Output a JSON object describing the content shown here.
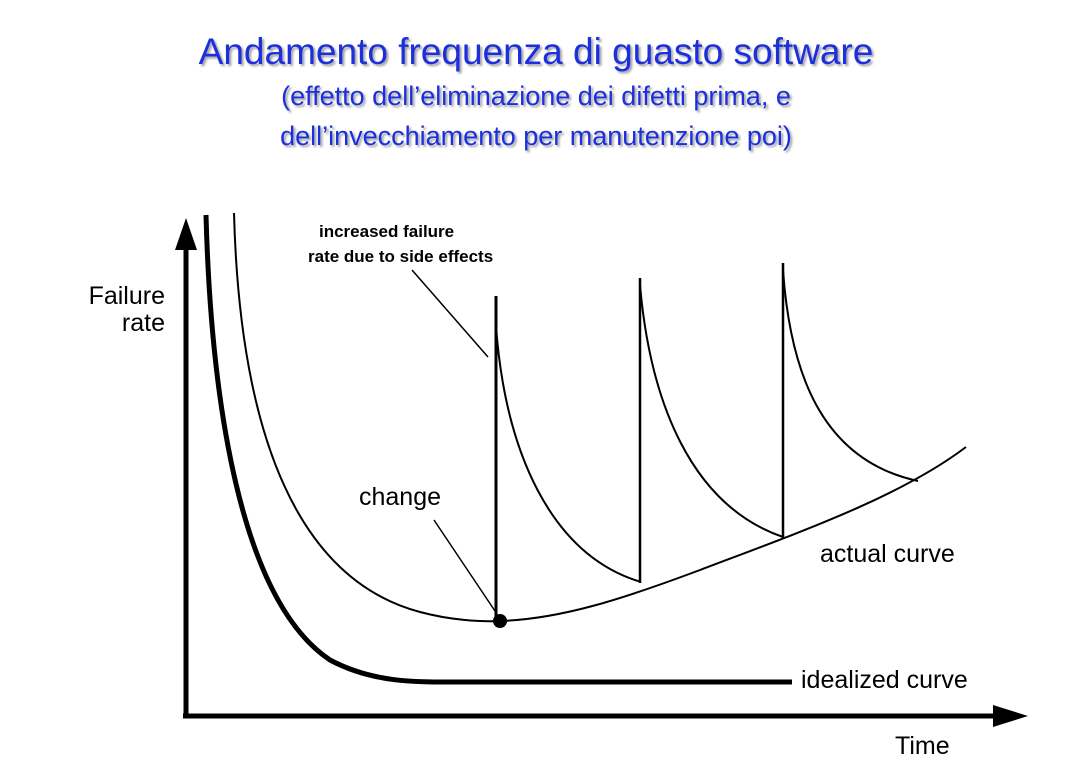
{
  "slide": {
    "title": "Andamento frequenza di guasto software",
    "subtitle_line1": "(effetto dell’eliminazione dei difetti prima, e",
    "subtitle_line2": "dell’invecchiamento per manutenzione poi)",
    "title_color": "#1c2fdc"
  },
  "diagram": {
    "y_axis_label_line1": "Failure",
    "y_axis_label_line2": "rate",
    "x_axis_label": "Time",
    "annotation_line1": "increased failure",
    "annotation_line2": "rate due to side effects",
    "change_label": "change",
    "actual_curve_label": "actual curve",
    "idealized_curve_label": "idealized curve",
    "line_color": "#000000"
  }
}
